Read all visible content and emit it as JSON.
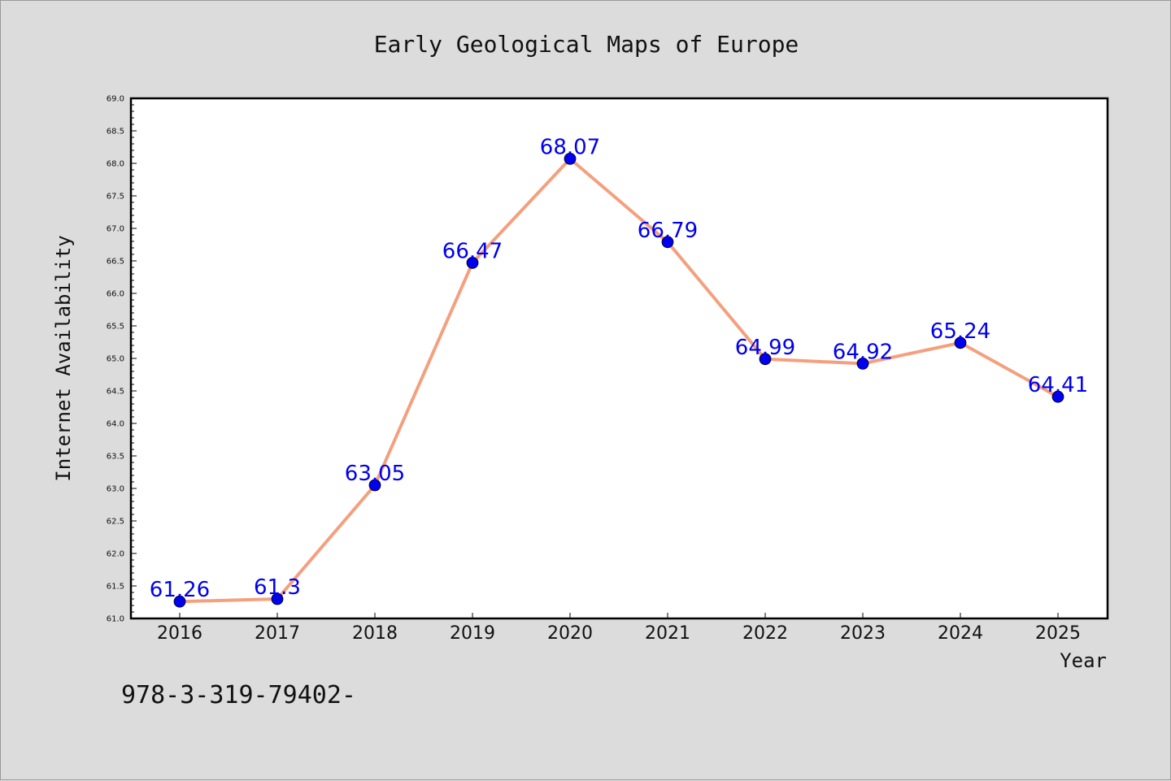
{
  "chart_data": {
    "type": "line",
    "title": "Early Geological Maps of Europe",
    "xlabel": "Year",
    "ylabel": "Internet Availability",
    "x": [
      "2016",
      "2017",
      "2018",
      "2019",
      "2020",
      "2021",
      "2022",
      "2023",
      "2024",
      "2025"
    ],
    "series": [
      {
        "values": [
          61.26,
          61.3,
          63.05,
          66.47,
          68.07,
          66.79,
          64.99,
          64.92,
          65.24,
          64.41
        ],
        "labels": [
          "61.26",
          "61.3",
          "63.05",
          "66.47",
          "68.07",
          "66.79",
          "64.99",
          "64.92",
          "65.24",
          "64.41"
        ],
        "line_color": "#f4a07e",
        "marker_color": "#0000ee",
        "label_color": "#0000ee"
      }
    ],
    "ylim": [
      61.0,
      69.0
    ],
    "yticks": [
      "61.0",
      "61.5",
      "62.0",
      "62.5",
      "63.0",
      "63.5",
      "64.0",
      "64.5",
      "65.0",
      "65.5",
      "66.0",
      "66.5",
      "67.0",
      "67.5",
      "68.0",
      "68.5",
      "69.0"
    ],
    "grid": false,
    "legend": "none"
  },
  "footnote": "978-3-319-79402-",
  "colors": {
    "background": "#dcdcdc",
    "plot_background": "#ffffff",
    "axis": "#000000"
  }
}
